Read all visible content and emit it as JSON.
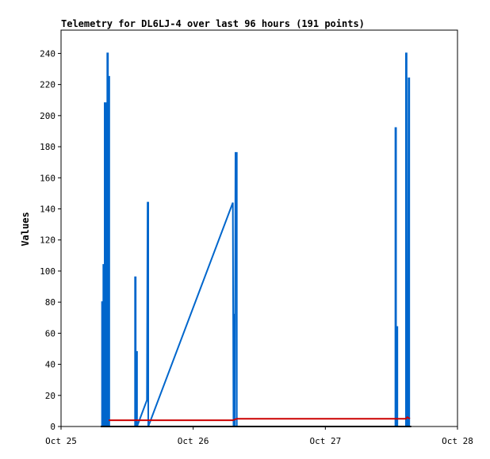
{
  "chart_data": {
    "type": "line",
    "title": "Telemetry for DL6LJ-4 over last 96 hours (191 points)",
    "xlabel": "",
    "ylabel": "Values",
    "x_ticks": [
      "Oct 25",
      "Oct 26",
      "Oct 27",
      "Oct 28"
    ],
    "y_ticks": [
      0,
      20,
      40,
      60,
      80,
      100,
      120,
      140,
      160,
      180,
      200,
      220,
      240
    ],
    "xlim_days": [
      25,
      28
    ],
    "ylim": [
      0,
      255
    ],
    "grid": false,
    "series": [
      {
        "color": "#0066cc",
        "points": [
          [
            25.31,
            0
          ],
          [
            25.31,
            80
          ],
          [
            25.32,
            80
          ],
          [
            25.32,
            0
          ],
          [
            25.32,
            104
          ],
          [
            25.33,
            104
          ],
          [
            25.33,
            0
          ],
          [
            25.33,
            208
          ],
          [
            25.34,
            208
          ],
          [
            25.34,
            0
          ],
          [
            25.34,
            192
          ],
          [
            25.35,
            192
          ],
          [
            25.35,
            0
          ],
          [
            25.35,
            240
          ],
          [
            25.355,
            240
          ],
          [
            25.355,
            0
          ],
          [
            25.36,
            225
          ],
          [
            25.365,
            225
          ],
          [
            25.365,
            0
          ],
          [
            25.56,
            0
          ],
          [
            25.56,
            96
          ],
          [
            25.565,
            96
          ],
          [
            25.565,
            0
          ],
          [
            25.57,
            48
          ],
          [
            25.575,
            48
          ],
          [
            25.575,
            0
          ],
          [
            25.65,
            17
          ],
          [
            25.655,
            144
          ],
          [
            25.66,
            144
          ],
          [
            25.66,
            0
          ],
          [
            26.3,
            144
          ],
          [
            26.305,
            0
          ],
          [
            26.31,
            72
          ],
          [
            26.315,
            72
          ],
          [
            26.315,
            0
          ],
          [
            26.32,
            176
          ],
          [
            26.33,
            176
          ],
          [
            26.33,
            0
          ],
          [
            27.53,
            0
          ],
          [
            27.53,
            192
          ],
          [
            27.535,
            192
          ],
          [
            27.535,
            0
          ],
          [
            27.54,
            64
          ],
          [
            27.545,
            64
          ],
          [
            27.545,
            0
          ],
          [
            27.61,
            0
          ],
          [
            27.61,
            240
          ],
          [
            27.615,
            240
          ],
          [
            27.615,
            0
          ],
          [
            27.62,
            64
          ],
          [
            27.625,
            64
          ],
          [
            27.625,
            0
          ],
          [
            27.63,
            224
          ],
          [
            27.635,
            224
          ],
          [
            27.635,
            0
          ]
        ]
      },
      {
        "color": "#cc0000",
        "points": [
          [
            25.36,
            4
          ],
          [
            26.3,
            4
          ],
          [
            26.33,
            5
          ],
          [
            27.6,
            5
          ],
          [
            27.61,
            5
          ],
          [
            27.62,
            6
          ],
          [
            27.64,
            5
          ]
        ]
      },
      {
        "color": "#000000",
        "points": [
          [
            25.3,
            0
          ],
          [
            27.65,
            0
          ]
        ]
      }
    ]
  }
}
